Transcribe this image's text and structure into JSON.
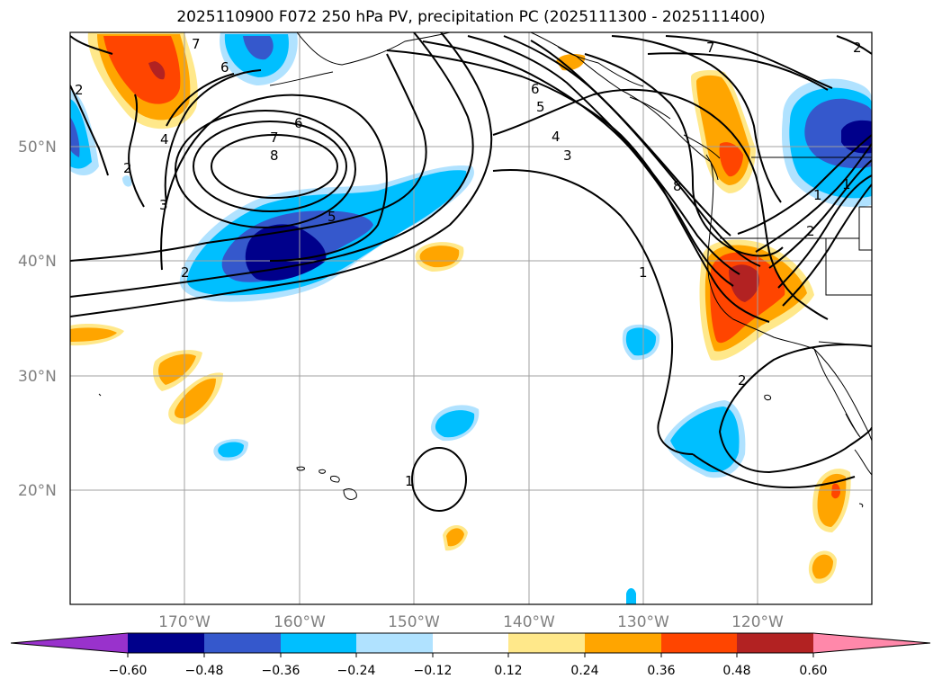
{
  "title": "2025110900 F072 250 hPa PV, precipitation PC (2025111300 - 2025111400)",
  "map": {
    "extent": {
      "lon_min": -180,
      "lon_max": -110,
      "lat_min": 10,
      "lat_max": 60
    },
    "lat_labels": [
      {
        "lat": 50,
        "text": "50°N"
      },
      {
        "lat": 40,
        "text": "40°N"
      },
      {
        "lat": 30,
        "text": "30°N"
      },
      {
        "lat": 20,
        "text": "20°N"
      }
    ],
    "lon_labels": [
      {
        "lon": -170,
        "text": "170°W"
      },
      {
        "lon": -160,
        "text": "160°W"
      },
      {
        "lon": -150,
        "text": "150°W"
      },
      {
        "lon": -140,
        "text": "140°W"
      },
      {
        "lon": -130,
        "text": "130°W"
      },
      {
        "lon": -120,
        "text": "120°W"
      }
    ],
    "contour_labels": [
      "7",
      "6",
      "5",
      "4",
      "3",
      "2",
      "1",
      "8"
    ]
  },
  "colorbar": {
    "colors": [
      "#9932cc",
      "#00008b",
      "#3558cc",
      "#00bfff",
      "#b0e2ff",
      "#ffffff",
      "#ffe88a",
      "#ffa500",
      "#ff4500",
      "#b22222",
      "#ff88aa"
    ],
    "ticks": [
      "−0.60",
      "−0.48",
      "−0.36",
      "−0.24",
      "−0.12",
      "0.12",
      "0.24",
      "0.36",
      "0.48",
      "0.60"
    ]
  }
}
